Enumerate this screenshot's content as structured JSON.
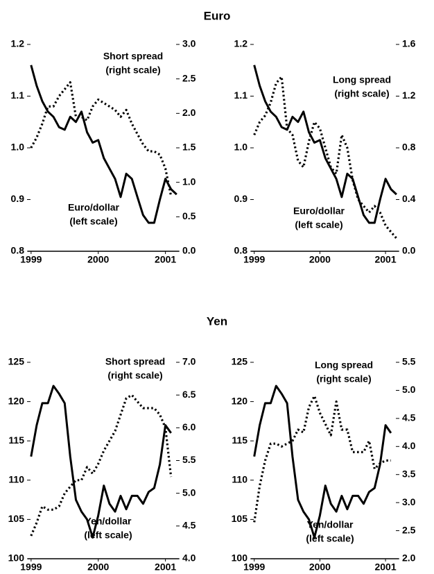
{
  "headings": [
    "Euro",
    "Yen"
  ],
  "chart_data": [
    {
      "type": "line",
      "x": [
        1999,
        1999.083,
        1999.167,
        1999.25,
        1999.333,
        1999.417,
        1999.5,
        1999.583,
        1999.667,
        1999.75,
        1999.833,
        1999.917,
        2000,
        2000.083,
        2000.167,
        2000.25,
        2000.333,
        2000.417,
        2000.5,
        2000.583,
        2000.667,
        2000.75,
        2000.833,
        2000.917,
        2001,
        2001.083,
        2001.167
      ],
      "xlim": [
        1998.95,
        2001.2
      ],
      "xticks": [
        1999,
        2000,
        2001
      ],
      "ylim": [
        0.8,
        1.2
      ],
      "yticks": [
        0.8,
        0.9,
        {
          "value": 1.0,
          "label": "1.0"
        },
        1.1,
        1.2
      ],
      "y2lim": [
        0,
        3
      ],
      "y2ticks": [
        {
          "value": 0,
          "label": "0.0"
        },
        0.5,
        {
          "value": 1,
          "label": "1.0"
        },
        1.5,
        {
          "value": 2,
          "label": "2.0"
        },
        2.5,
        {
          "value": 3,
          "label": "3.0"
        }
      ],
      "series": [
        {
          "name": "Euro/dollar",
          "note": "(left scale)",
          "style": "solid",
          "color": "#000000",
          "values": [
            1.16,
            1.12,
            1.09,
            1.07,
            1.06,
            1.04,
            1.035,
            1.06,
            1.05,
            1.07,
            1.03,
            1.01,
            1.015,
            0.98,
            0.96,
            0.94,
            0.905,
            0.95,
            0.94,
            0.905,
            0.87,
            0.855,
            0.855,
            0.9,
            0.94,
            0.92,
            0.91
          ]
        },
        {
          "name": "Short spread",
          "note": "(right scale)",
          "style": "dotted",
          "color": "#000000",
          "axis": "y2",
          "values": [
            1.5,
            1.65,
            1.85,
            2.1,
            2.1,
            2.25,
            2.35,
            2.45,
            1.95,
            1.95,
            1.9,
            2.1,
            2.2,
            2.15,
            2.1,
            2.05,
            1.95,
            2.05,
            1.85,
            1.7,
            1.55,
            1.45,
            1.45,
            1.4,
            1.2,
            0.8,
            null
          ]
        }
      ]
    },
    {
      "type": "line",
      "x": [
        1999,
        1999.083,
        1999.167,
        1999.25,
        1999.333,
        1999.417,
        1999.5,
        1999.583,
        1999.667,
        1999.75,
        1999.833,
        1999.917,
        2000,
        2000.083,
        2000.167,
        2000.25,
        2000.333,
        2000.417,
        2000.5,
        2000.583,
        2000.667,
        2000.75,
        2000.833,
        2000.917,
        2001,
        2001.083,
        2001.167
      ],
      "xlim": [
        1998.95,
        2001.2
      ],
      "xticks": [
        1999,
        2000,
        2001
      ],
      "ylim": [
        0.8,
        1.2
      ],
      "yticks": [
        0.8,
        0.9,
        {
          "value": 1.0,
          "label": "1.0"
        },
        1.1,
        1.2
      ],
      "y2lim": [
        0,
        1.6
      ],
      "y2ticks": [
        {
          "value": 0,
          "label": "0.0"
        },
        0.4,
        0.8,
        1.2,
        1.6
      ],
      "series": [
        {
          "name": "Euro/dollar",
          "note": "(left scale)",
          "style": "solid",
          "color": "#000000",
          "values": [
            1.16,
            1.12,
            1.09,
            1.07,
            1.06,
            1.04,
            1.035,
            1.06,
            1.05,
            1.07,
            1.03,
            1.01,
            1.015,
            0.98,
            0.96,
            0.94,
            0.905,
            0.95,
            0.94,
            0.905,
            0.87,
            0.855,
            0.855,
            0.9,
            0.94,
            0.92,
            0.91
          ]
        },
        {
          "name": "Long spread",
          "note": "(right scale)",
          "style": "dotted",
          "color": "#000000",
          "axis": "y2",
          "values": [
            0.9,
            1.0,
            1.05,
            1.15,
            1.3,
            1.35,
            0.95,
            0.9,
            0.7,
            0.65,
            0.85,
            1.0,
            0.95,
            0.8,
            0.65,
            0.6,
            0.9,
            0.8,
            0.55,
            0.4,
            0.35,
            0.3,
            0.35,
            0.3,
            0.2,
            0.15,
            0.1
          ]
        }
      ]
    },
    {
      "type": "line",
      "x": [
        1999,
        1999.083,
        1999.167,
        1999.25,
        1999.333,
        1999.417,
        1999.5,
        1999.583,
        1999.667,
        1999.75,
        1999.833,
        1999.917,
        2000,
        2000.083,
        2000.167,
        2000.25,
        2000.333,
        2000.417,
        2000.5,
        2000.583,
        2000.667,
        2000.75,
        2000.833,
        2000.917,
        2001,
        2001.083
      ],
      "xlim": [
        1998.95,
        2001.2
      ],
      "xticks": [
        1999,
        2000,
        2001
      ],
      "ylim": [
        100,
        125
      ],
      "yticks": [
        100,
        105,
        110,
        115,
        120,
        125
      ],
      "y2lim": [
        4,
        7
      ],
      "y2ticks": [
        {
          "value": 4,
          "label": "4.0"
        },
        4.5,
        {
          "value": 5,
          "label": "5.0"
        },
        5.5,
        {
          "value": 6,
          "label": "6.0"
        },
        6.5,
        {
          "value": 7,
          "label": "7.0"
        }
      ],
      "series": [
        {
          "name": "Yen/dollar",
          "note": "(left scale)",
          "style": "solid",
          "color": "#000000",
          "values": [
            113,
            117,
            119.8,
            119.8,
            122,
            121,
            119.8,
            113,
            107.5,
            106,
            105,
            102.7,
            105.5,
            109.3,
            107,
            106,
            108,
            106.3,
            108,
            108,
            107,
            108.5,
            109,
            112,
            117,
            116
          ]
        },
        {
          "name": "Short spread",
          "note": "(right scale)",
          "style": "dotted",
          "color": "#000000",
          "axis": "y2",
          "values": [
            4.35,
            4.55,
            4.8,
            4.75,
            4.75,
            4.8,
            5.0,
            5.1,
            5.2,
            5.2,
            5.4,
            5.3,
            5.45,
            5.65,
            5.8,
            5.95,
            6.2,
            6.45,
            6.5,
            6.4,
            6.3,
            6.3,
            6.3,
            6.2,
            6.0,
            5.25
          ]
        }
      ]
    },
    {
      "type": "line",
      "x": [
        1999,
        1999.083,
        1999.167,
        1999.25,
        1999.333,
        1999.417,
        1999.5,
        1999.583,
        1999.667,
        1999.75,
        1999.833,
        1999.917,
        2000,
        2000.083,
        2000.167,
        2000.25,
        2000.333,
        2000.417,
        2000.5,
        2000.583,
        2000.667,
        2000.75,
        2000.833,
        2000.917,
        2001,
        2001.083
      ],
      "xlim": [
        1998.95,
        2001.2
      ],
      "xticks": [
        1999,
        2000,
        2001
      ],
      "ylim": [
        100,
        125
      ],
      "yticks": [
        100,
        105,
        110,
        115,
        120,
        125
      ],
      "y2lim": [
        2,
        5.5
      ],
      "y2ticks": [
        {
          "value": 2,
          "label": "2.0"
        },
        2.5,
        {
          "value": 3,
          "label": "3.0"
        },
        3.5,
        {
          "value": 4,
          "label": "4.0"
        },
        4.5,
        {
          "value": 5,
          "label": "5.0"
        },
        5.5
      ],
      "series": [
        {
          "name": "Yen/dollar",
          "note": "(left scale)",
          "style": "solid",
          "color": "#000000",
          "values": [
            113,
            117,
            119.8,
            119.8,
            122,
            121,
            119.8,
            113,
            107.5,
            106,
            105,
            102.7,
            105.5,
            109.3,
            107,
            106,
            108,
            106.3,
            108,
            108,
            107,
            108.5,
            109,
            112,
            117,
            116
          ]
        },
        {
          "name": "Long spread",
          "note": "(right scale)",
          "style": "dotted",
          "color": "#000000",
          "axis": "y2",
          "values": [
            2.65,
            3.3,
            3.75,
            4.05,
            4.05,
            4.0,
            4.05,
            4.1,
            4.3,
            4.25,
            4.7,
            4.9,
            4.6,
            4.4,
            4.2,
            4.8,
            4.3,
            4.3,
            3.9,
            3.9,
            3.9,
            4.1,
            3.6,
            3.7,
            3.75,
            3.75
          ]
        }
      ]
    }
  ]
}
